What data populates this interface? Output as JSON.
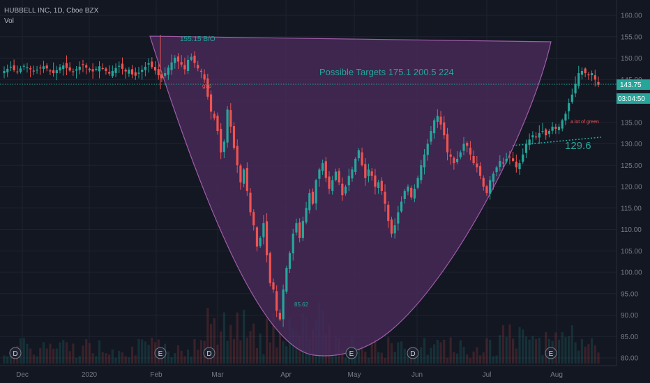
{
  "header": {
    "symbol_line": "HUBBELL INC, 1D, Cboe BZX",
    "volume_label": "Vol"
  },
  "colors": {
    "background": "#131722",
    "grid": "#1e2330",
    "up": "#26a69a",
    "down": "#ef5350",
    "cup_fill": "#4a2a5c",
    "cup_stroke": "#a05ca8",
    "annotation": "#26a69a",
    "annotation_red": "#ef5350",
    "price_tag_bg": "#26a69a",
    "event_badge_border": "#787b86"
  },
  "annotations": {
    "breakout_label": "155.15 B/O",
    "targets_label": "Possible Targets  175.1  200.5   224",
    "gap_label": "gap",
    "low_label": "85.62",
    "green_label": "a lot of green",
    "support_label": "129.6"
  },
  "price_tags": {
    "last_price": "143.75",
    "countdown": "03:04:50"
  },
  "event_markers": [
    {
      "label": "D",
      "x_label": "Dec"
    },
    {
      "label": "E",
      "x_label": "Feb"
    },
    {
      "label": "D",
      "x_label": "Mar"
    },
    {
      "label": "E",
      "x_label": "May"
    },
    {
      "label": "D",
      "x_label": "Jun"
    },
    {
      "label": "E",
      "x_label": "Aug"
    }
  ],
  "chart_data": {
    "type": "candlestick",
    "title": "HUBBELL INC, 1D, Cboe BZX",
    "y_axis_ticks": [
      "160.00",
      "155.00",
      "150.00",
      "145.00",
      "140.00",
      "135.00",
      "130.00",
      "125.00",
      "120.00",
      "115.00",
      "110.00",
      "105.00",
      "100.00",
      "95.00",
      "90.00",
      "85.00",
      "80.00"
    ],
    "ylim": [
      80,
      162
    ],
    "x_axis_ticks": [
      "Dec",
      "2020",
      "Feb",
      "Mar",
      "Apr",
      "May",
      "Jun",
      "Jul",
      "Aug"
    ],
    "last_price": 143.75,
    "series_close": [
      147.0,
      147.5,
      148.0,
      147.2,
      146.8,
      147.6,
      148.2,
      147.9,
      147.4,
      146.9,
      147.3,
      147.8,
      148.1,
      147.6,
      147.0,
      146.5,
      147.2,
      147.9,
      148.3,
      147.7,
      147.1,
      146.8,
      147.4,
      148.0,
      148.4,
      147.8,
      147.2,
      146.9,
      147.5,
      148.1,
      147.6,
      147.0,
      146.4,
      147.0,
      147.7,
      148.2,
      147.5,
      146.9,
      147.3,
      146.2,
      145.9,
      146.6,
      147.3,
      148.0,
      148.8,
      147.9,
      147.1,
      146.0,
      145.3,
      146.5,
      147.8,
      149.0,
      150.1,
      149.2,
      148.5,
      147.4,
      149.6,
      150.3,
      148.9,
      147.6,
      146.8,
      145.0,
      141.0,
      137.5,
      136.0,
      133.0,
      128.0,
      130.5,
      138.0,
      134.0,
      129.0,
      125.0,
      121.0,
      124.0,
      119.0,
      114.0,
      111.0,
      106.0,
      108.0,
      111.5,
      104.0,
      97.5,
      96.0,
      91.0,
      89.0,
      96.0,
      101.0,
      104.5,
      109.0,
      111.5,
      108.0,
      112.0,
      115.0,
      118.5,
      116.0,
      121.5,
      124.0,
      125.5,
      122.0,
      119.5,
      121.5,
      123.5,
      121.0,
      118.0,
      120.0,
      122.5,
      124.0,
      126.5,
      128.5,
      125.0,
      122.0,
      124.0,
      122.5,
      120.0,
      121.0,
      119.0,
      116.0,
      112.0,
      109.0,
      111.0,
      114.0,
      116.5,
      119.0,
      120.0,
      117.5,
      119.5,
      122.0,
      125.0,
      127.5,
      130.0,
      133.0,
      135.5,
      136.5,
      134.5,
      132.0,
      128.0,
      127.0,
      125.5,
      126.5,
      128.0,
      130.0,
      129.5,
      127.5,
      125.5,
      124.5,
      122.5,
      120.0,
      118.5,
      121.5,
      123.0,
      124.5,
      126.0,
      125.5,
      126.5,
      127.0,
      126.0,
      124.5,
      125.5,
      127.5,
      130.0,
      131.0,
      132.0,
      131.5,
      132.5,
      133.0,
      132.0,
      133.0,
      134.0,
      133.5,
      134.0,
      135.5,
      137.0,
      139.5,
      141.5,
      144.0,
      146.5,
      147.0,
      146.5,
      146.0,
      146.5,
      145.0,
      143.75
    ]
  }
}
